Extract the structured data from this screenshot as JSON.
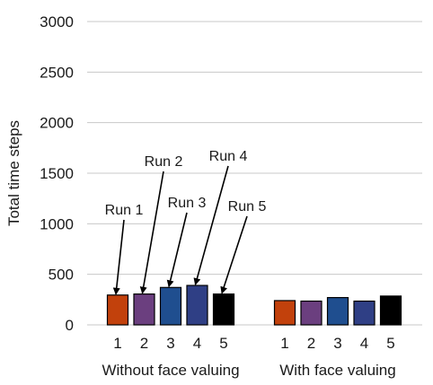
{
  "chart_data": {
    "type": "bar",
    "title": "",
    "ylabel": "Total time steps",
    "ylim": [
      0,
      3000
    ],
    "yticks": [
      "0",
      "500",
      "1000",
      "1500",
      "2000",
      "2500",
      "3000"
    ],
    "grid": true,
    "groups": [
      {
        "label": "Without face valuing",
        "categories": [
          "1",
          "2",
          "3",
          "4",
          "5"
        ],
        "values": [
          295,
          305,
          370,
          390,
          305
        ]
      },
      {
        "label": "With face valuing",
        "categories": [
          "1",
          "2",
          "3",
          "4",
          "5"
        ],
        "values": [
          240,
          235,
          270,
          235,
          285
        ]
      }
    ],
    "series_colors": [
      "#c2410c",
      "#6b3f7f",
      "#1f4e8f",
      "#2f3f85",
      "#000000"
    ],
    "annotations": [
      "Run 1",
      "Run 2",
      "Run 3",
      "Run 4",
      "Run 5"
    ]
  }
}
